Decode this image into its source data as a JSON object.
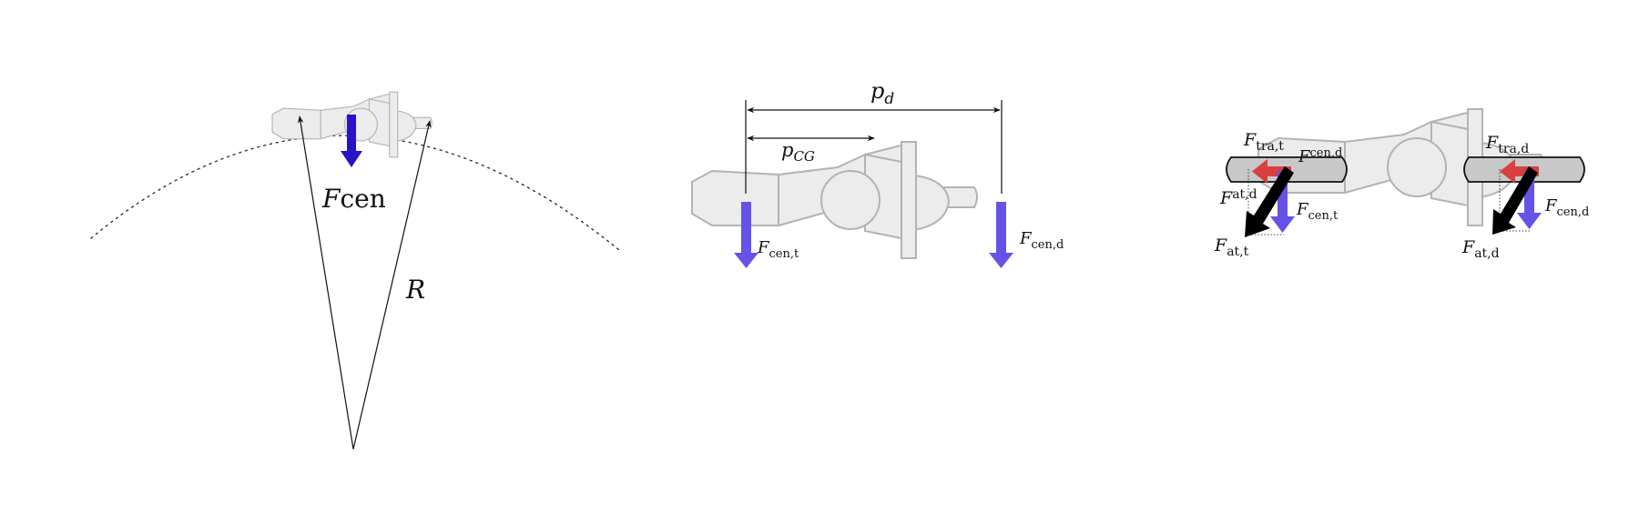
{
  "colors": {
    "vehicle_fill": "#ececec",
    "vehicle_stroke": "#b3b3b3",
    "centrifugal_force_panel1": "#2a12c8",
    "centrifugal_force": "#6652e6",
    "traction_force": "#d84040",
    "tire_fill": "#c8c8c8",
    "resultant_force": "#000000"
  },
  "panel_turn": {
    "force_label_italic": "F",
    "force_label_rest": "cen",
    "radius_label": "R"
  },
  "panel_side": {
    "pd": {
      "main": "p",
      "sub": "d"
    },
    "pcg": {
      "main": "p",
      "sub": "CG"
    },
    "fcen_t": {
      "main": "F",
      "sub": "cen,t"
    },
    "fcen_d": {
      "main": "F",
      "sub": "cen,d"
    }
  },
  "panel_forces": {
    "ftra_t": {
      "main": "F",
      "sub": "tra,t"
    },
    "fcen_d_left": {
      "main": "F",
      "sub": "cen,d"
    },
    "fat_d_left": {
      "main": "F",
      "sub": "at,d"
    },
    "fcen_t": {
      "main": "F",
      "sub": "cen,t"
    },
    "fat_t": {
      "main": "F",
      "sub": "at,t"
    },
    "ftra_d": {
      "main": "F",
      "sub": "tra,d"
    },
    "fcen_d": {
      "main": "F",
      "sub": "cen,d"
    },
    "fat_d": {
      "main": "F",
      "sub": "at,d"
    }
  }
}
